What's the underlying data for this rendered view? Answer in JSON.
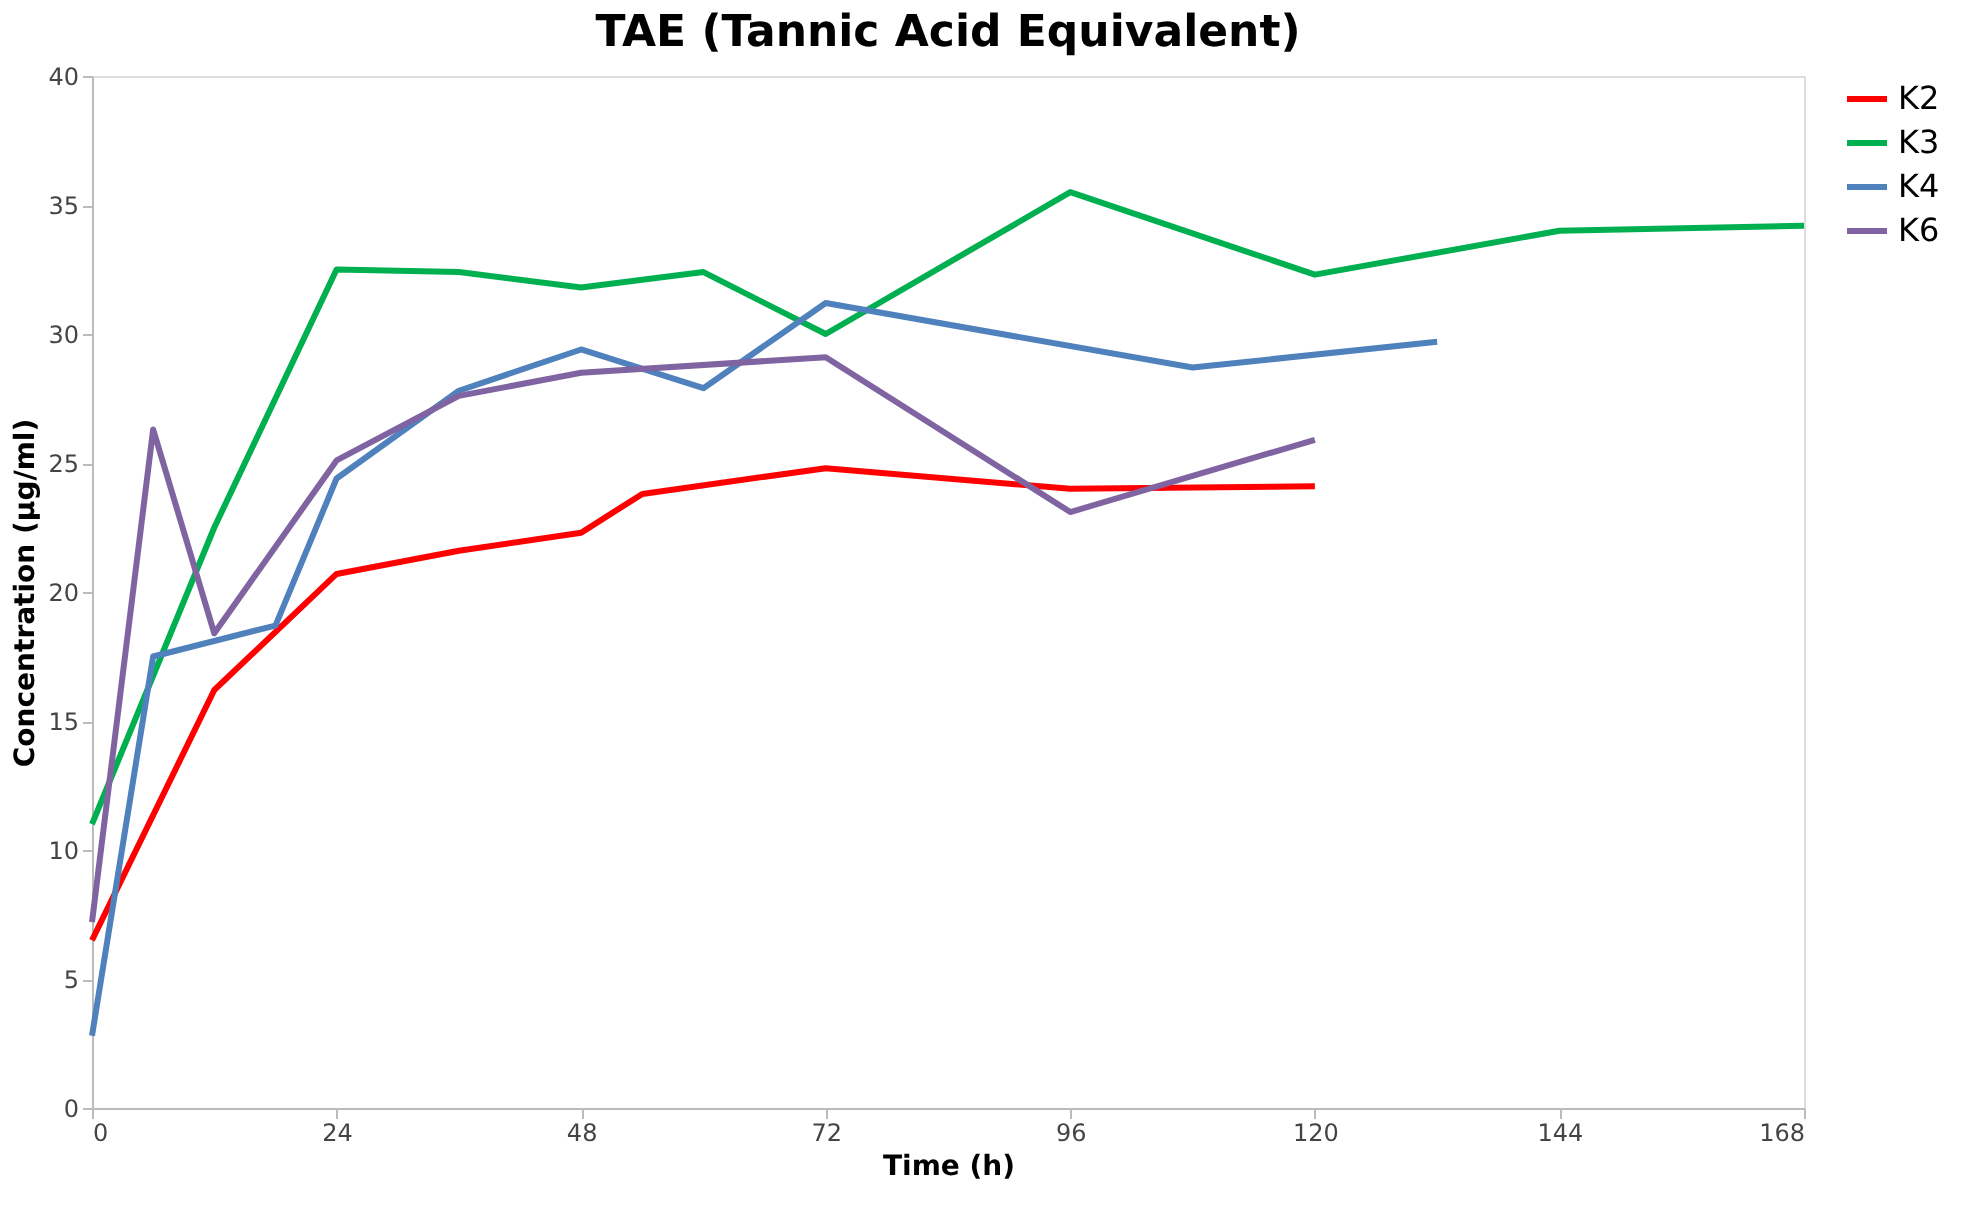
{
  "chart_data": {
    "type": "line",
    "title": "TAE (Tannic Acid Equivalent)",
    "xlabel": "Time (h)",
    "ylabel": "Concentration (µg/ml)",
    "xlim": [
      0,
      168
    ],
    "xticks": [
      0,
      24,
      48,
      72,
      96,
      120,
      144,
      168
    ],
    "ylim": [
      0,
      40
    ],
    "yticks": [
      0,
      5,
      10,
      15,
      20,
      25,
      30,
      35,
      40
    ],
    "grid": false,
    "legend": "right",
    "marker": "none",
    "line_style": "solid",
    "series": [
      {
        "name": "K2",
        "color": "#ff0000",
        "x": [
          0,
          12,
          24,
          36,
          48,
          54,
          72,
          96,
          120
        ],
        "values": [
          6.5,
          16.2,
          20.7,
          21.6,
          22.3,
          23.8,
          24.8,
          24.0,
          24.1
        ]
      },
      {
        "name": "K3",
        "color": "#00b050",
        "x": [
          0,
          12,
          24,
          36,
          48,
          60,
          72,
          96,
          120,
          144,
          168
        ],
        "values": [
          11.0,
          22.5,
          32.5,
          32.4,
          31.8,
          32.4,
          30.0,
          35.5,
          32.3,
          34.0,
          34.2
        ]
      },
      {
        "name": "K4",
        "color": "#4f81bd",
        "x": [
          0,
          6,
          18,
          24,
          36,
          48,
          60,
          72,
          108,
          132
        ],
        "values": [
          2.8,
          17.5,
          18.7,
          24.4,
          27.8,
          29.4,
          27.9,
          31.2,
          28.7,
          29.7
        ]
      },
      {
        "name": "K6",
        "color": "#8064a2",
        "x": [
          0,
          6,
          12,
          24,
          36,
          48,
          72,
          96,
          120
        ],
        "values": [
          7.2,
          26.3,
          18.4,
          25.1,
          27.6,
          28.5,
          29.1,
          23.1,
          25.9
        ]
      }
    ]
  }
}
